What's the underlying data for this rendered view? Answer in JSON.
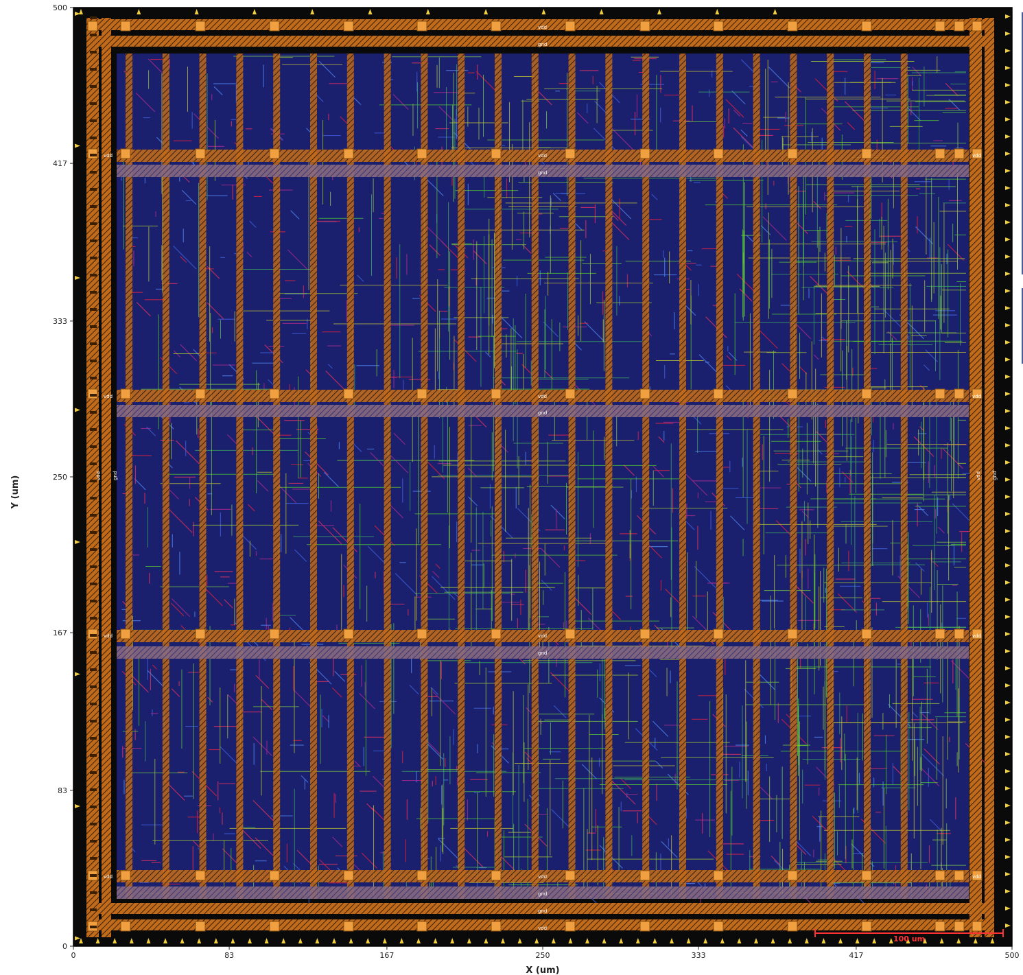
{
  "axes": {
    "x_label": "X (um)",
    "y_label": "Y (um)",
    "x_ticks": [
      "0",
      "83",
      "167",
      "250",
      "333",
      "417",
      "500"
    ],
    "y_ticks": [
      "500",
      "417",
      "333",
      "250",
      "167",
      "83",
      "0"
    ],
    "x_range": [
      0,
      500
    ],
    "y_range": [
      0,
      500
    ]
  },
  "scale_bar": {
    "label": "100 um",
    "length_um": 100
  },
  "power_nets": {
    "vdd": "vdd",
    "gnd": "gnd"
  },
  "colors": {
    "background": "#0a0a0a",
    "core": "#1a1f6e",
    "power_rail": "#e0862a",
    "metal_green": "#55cc33",
    "metal_yellow": "#c8c832",
    "metal_red": "#cc2244",
    "pin": "#f0d040",
    "scale_bar": "#ff3333"
  }
}
